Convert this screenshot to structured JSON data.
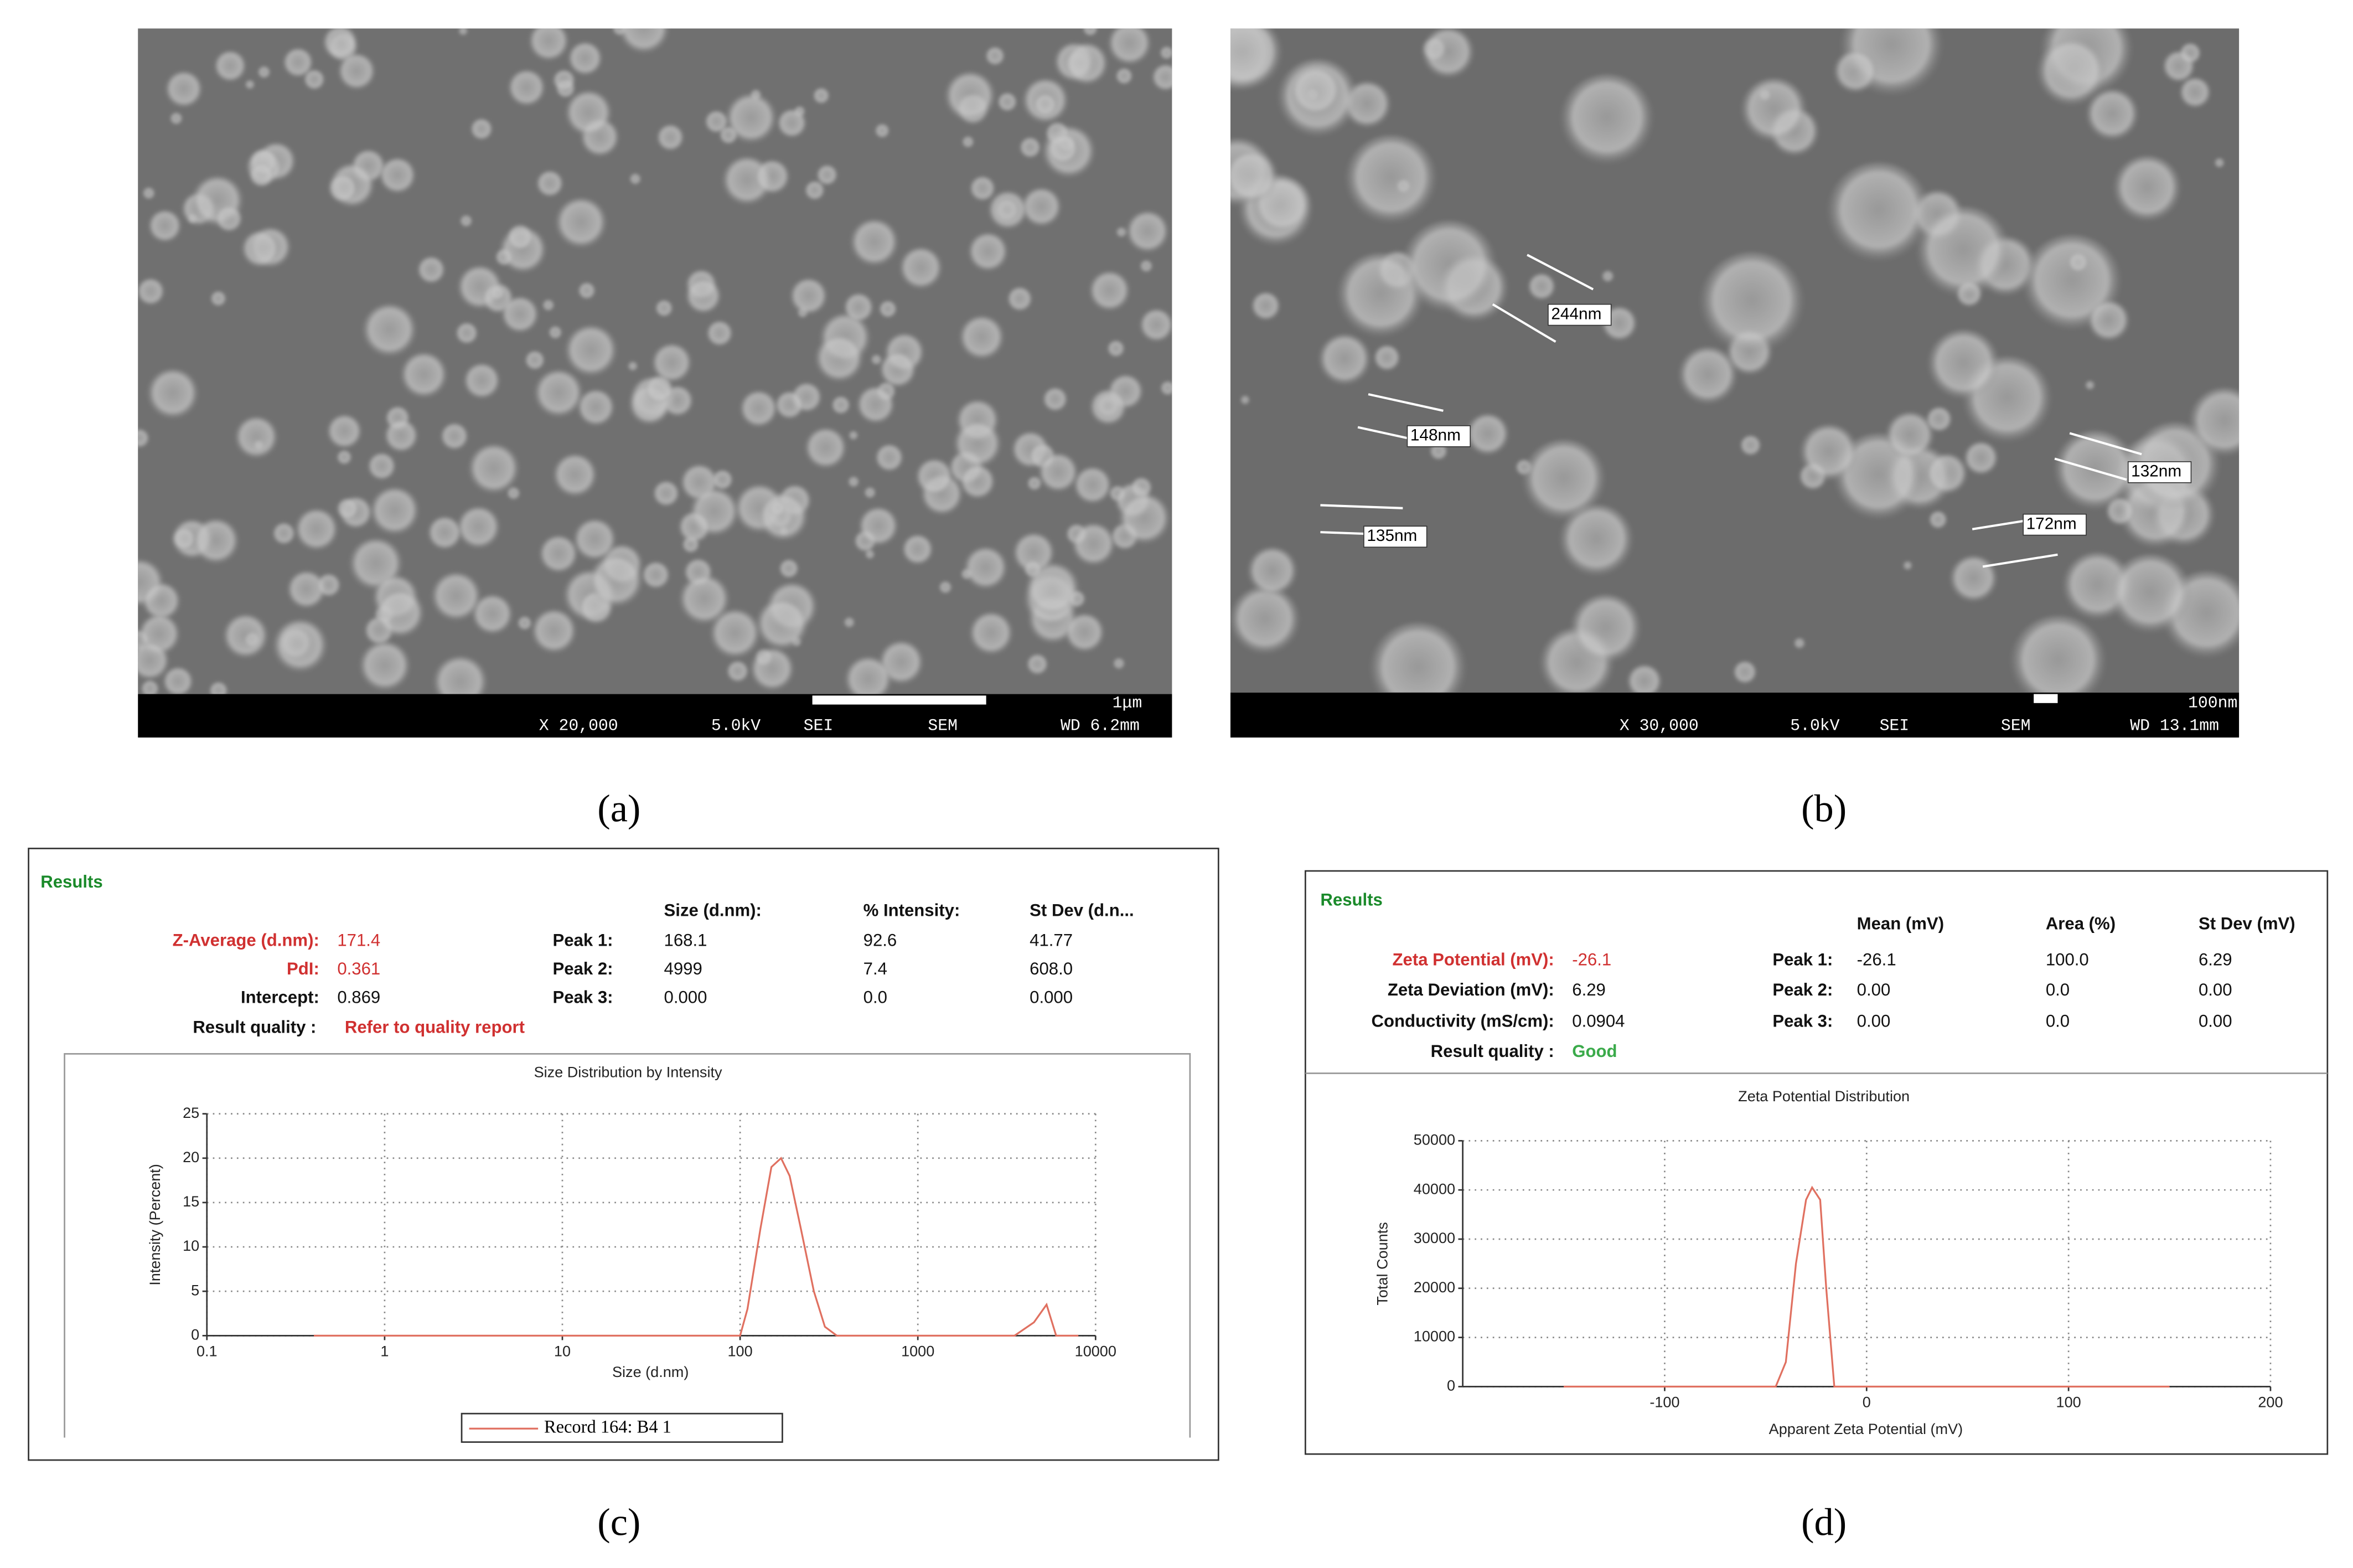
{
  "sem_a": {
    "label": "(a)",
    "magnification": "X 20,000",
    "voltage": "5.0kV",
    "detector": "SEI",
    "mode": "SEM",
    "working_distance": "WD 6.2mm",
    "scale": "1μm"
  },
  "sem_b": {
    "label": "(b)",
    "magnification": "X 30,000",
    "voltage": "5.0kV",
    "detector": "SEI",
    "mode": "SEM",
    "working_distance": "WD 13.1mm",
    "scale": "100nm",
    "annotations": [
      "244nm",
      "148nm",
      "135nm",
      "132nm",
      "172nm"
    ]
  },
  "results_c": {
    "label": "(c)",
    "heading": "Results",
    "columns": [
      "Size (d.nm):",
      "% Intensity:",
      "St Dev (d.n..."
    ],
    "summary": [
      [
        "Z-Average (d.nm):",
        "171.4"
      ],
      [
        "PdI:",
        "0.361"
      ],
      [
        "Intercept:",
        "0.869"
      ]
    ],
    "quality": [
      "Result quality :",
      "Refer to quality report"
    ],
    "peaks": [
      [
        "Peak 1:",
        "168.1",
        "92.6",
        "41.77"
      ],
      [
        "Peak 2:",
        "4999",
        "7.4",
        "608.0"
      ],
      [
        "Peak 3:",
        "0.000",
        "0.0",
        "0.000"
      ]
    ]
  },
  "results_d": {
    "label": "(d)",
    "heading": "Results",
    "columns": [
      "Mean (mV)",
      "Area (%)",
      "St Dev (mV)"
    ],
    "summary": [
      [
        "Zeta Potential (mV):",
        "-26.1"
      ],
      [
        "Zeta Deviation (mV):",
        "6.29"
      ],
      [
        "Conductivity (mS/cm):",
        "0.0904"
      ]
    ],
    "quality": [
      "Result quality :",
      "Good"
    ],
    "peaks": [
      [
        "Peak 1:",
        "-26.1",
        "100.0",
        "6.29"
      ],
      [
        "Peak 2:",
        "0.00",
        "0.0",
        "0.00"
      ],
      [
        "Peak 3:",
        "0.00",
        "0.0",
        "0.00"
      ]
    ]
  },
  "chart_data": [
    {
      "type": "line",
      "title": "Size Distribution by Intensity",
      "x_label": "Size (d.nm)",
      "y_label": "Intensity (Percent)",
      "xscale": "log",
      "grid": true,
      "x": [
        0.4,
        100,
        110,
        130,
        150,
        170,
        190,
        220,
        260,
        300,
        350,
        3500,
        4500,
        5300,
        6000,
        8000
      ],
      "series": [
        {
          "name": "Record 164: B4  1",
          "color": "#e07060",
          "values": [
            0,
            0,
            3,
            12,
            19,
            20,
            18,
            12,
            5,
            1,
            0,
            0,
            1.5,
            3.5,
            0,
            0
          ]
        }
      ],
      "xlim": [
        0.1,
        10000
      ],
      "xticks": [
        0.1,
        1,
        10,
        100,
        1000,
        10000
      ],
      "ylim": [
        0,
        25
      ],
      "yticks": [
        0,
        5,
        10,
        15,
        20,
        25
      ]
    },
    {
      "type": "line",
      "title": "Zeta Potential Distribution",
      "x_label": "Apparent Zeta Potential (mV)",
      "y_label": "Total Counts",
      "grid": true,
      "x": [
        -150,
        -45,
        -40,
        -35,
        -30,
        -27,
        -23,
        -20,
        -16,
        150
      ],
      "series": [
        {
          "color": "#e07060",
          "values": [
            0,
            0,
            5000,
            25000,
            38000,
            40500,
            38000,
            20000,
            0,
            0
          ]
        }
      ],
      "xlim": [
        -200,
        200
      ],
      "xticks": [
        -100,
        0,
        100,
        200
      ],
      "ylim": [
        0,
        50000
      ],
      "yticks": [
        0,
        10000,
        20000,
        30000,
        40000,
        50000
      ]
    }
  ]
}
